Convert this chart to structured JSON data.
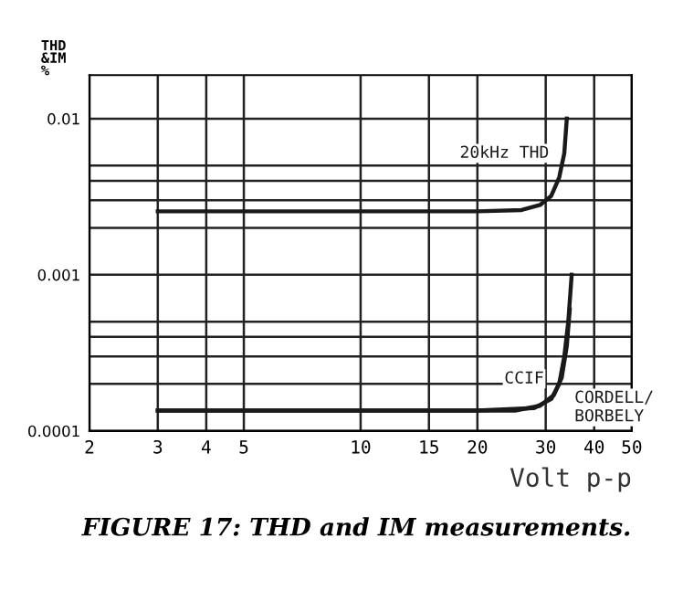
{
  "chart_data": {
    "type": "line",
    "ylabel": "THD\n&IM\n%",
    "xlabel": "Volt p-p",
    "log": "xy",
    "grid": true,
    "marker": "none",
    "line_style": "solid",
    "xlim": [
      2,
      50
    ],
    "xticks": [
      2,
      3,
      4,
      5,
      10,
      15,
      20,
      30,
      40,
      50
    ],
    "ylim": [
      0.0001,
      0.019
    ],
    "yticks": [
      0.0001,
      {
        "value": 0.0002,
        "label": null
      },
      {
        "value": 0.0003,
        "label": null
      },
      {
        "value": 0.0004,
        "label": null
      },
      {
        "value": 0.0005,
        "label": null
      },
      0.001,
      {
        "value": 0.002,
        "label": null
      },
      {
        "value": 0.003,
        "label": null
      },
      {
        "value": 0.004,
        "label": null
      },
      {
        "value": 0.005,
        "label": null
      },
      0.01
    ],
    "series": [
      {
        "name": "20kHz THD",
        "color": "#1a1a1a",
        "x": [
          3,
          10,
          20,
          26,
          29,
          31,
          32.5,
          33.5,
          34
        ],
        "values": [
          0.00255,
          0.00255,
          0.00255,
          0.0026,
          0.0028,
          0.0032,
          0.0042,
          0.006,
          0.01
        ]
      },
      {
        "name": "CCIF",
        "color": "#1a1a1a",
        "x": [
          3,
          10,
          20,
          28,
          31,
          32.5,
          33.5,
          34.3,
          35
        ],
        "values": [
          0.000135,
          0.000135,
          0.000135,
          0.00014,
          0.00016,
          0.0002,
          0.0003,
          0.0005,
          0.001
        ]
      },
      {
        "name": "CORDELL/\nBORBELY",
        "color": "#1a1a1a",
        "x": [
          3,
          10,
          20,
          25,
          29,
          31.5,
          33,
          34,
          34.6
        ],
        "values": [
          0.000135,
          0.000135,
          0.000135,
          0.000135,
          0.000145,
          0.00017,
          0.00022,
          0.00035,
          0.0006
        ]
      }
    ],
    "annotations": [
      "FIGURE 17: THD and IM measurements."
    ]
  }
}
